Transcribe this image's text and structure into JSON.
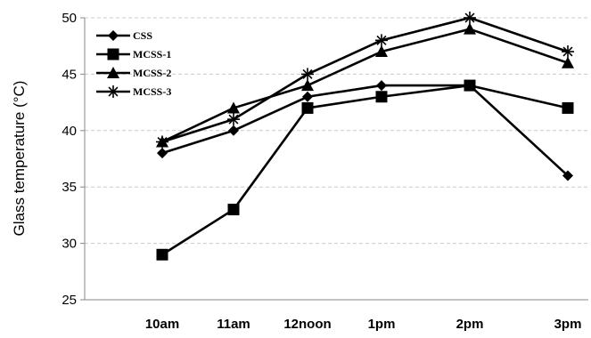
{
  "chart_data": {
    "type": "line",
    "title": "",
    "xlabel": "",
    "ylabel": "Glass temperature (°C)",
    "ylim": [
      25,
      50
    ],
    "yticks": [
      "25",
      "30",
      "35",
      "40",
      "45",
      "50"
    ],
    "categories": [
      "10am",
      "11am",
      "12noon",
      "1pm",
      "2pm",
      "3pm"
    ],
    "grid": "horizontal dashed",
    "legend_position": "top-left",
    "line_color": "#000000",
    "series": [
      {
        "name": "CSS",
        "marker": "diamond",
        "values": [
          38,
          40,
          43,
          44,
          44,
          36
        ]
      },
      {
        "name": "MCSS-1",
        "marker": "square",
        "values": [
          29,
          33,
          42,
          43,
          44,
          42
        ]
      },
      {
        "name": "MCSS-2",
        "marker": "triangle",
        "values": [
          39,
          42,
          44,
          47,
          49,
          46
        ]
      },
      {
        "name": "MCSS-3",
        "marker": "star",
        "values": [
          39,
          41,
          45,
          48,
          50,
          47
        ]
      }
    ]
  }
}
